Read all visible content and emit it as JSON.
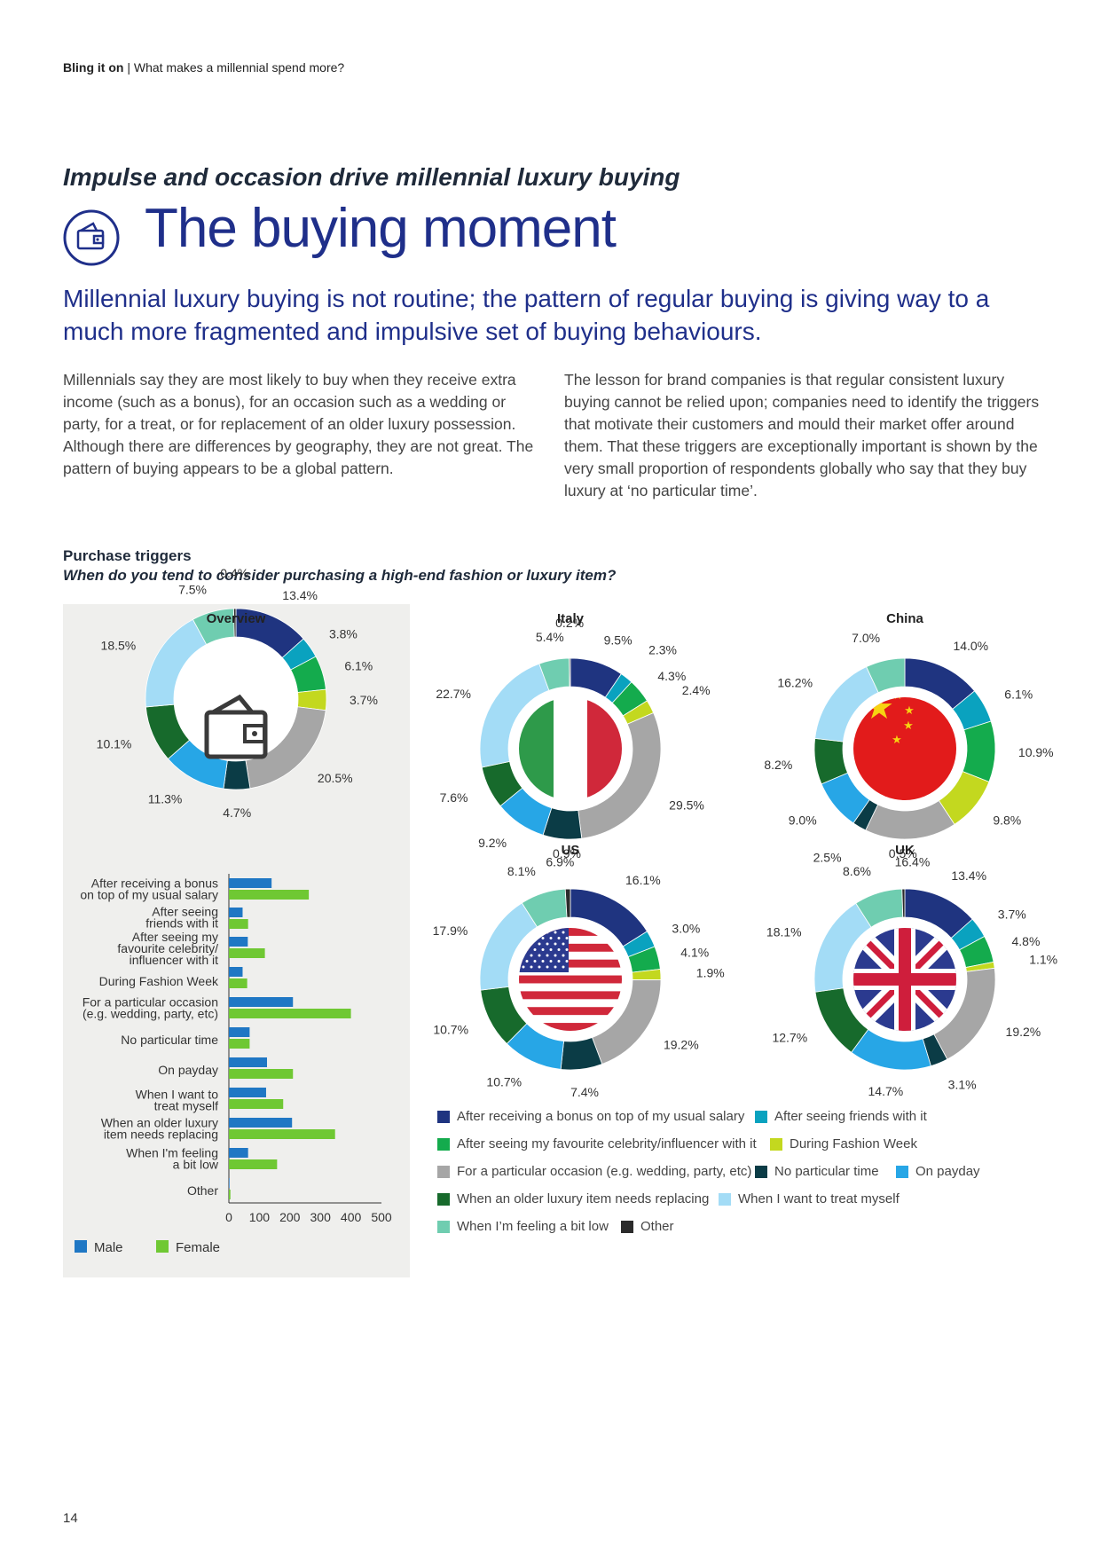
{
  "header": {
    "running_title": "Bling it on",
    "running_separator": "|",
    "running_subtitle": "What makes a millennial spend more?"
  },
  "kicker": "Impulse and occasion drive millennial luxury buying",
  "title": "The buying moment",
  "lead": "Millennial luxury buying is not routine; the pattern of regular buying is giving way to a much more fragmented and impulsive set of buying behaviours.",
  "body": {
    "left": "Millennials say they are most likely to buy when they receive extra income (such as a bonus), for an occasion such as a wedding or party, for a treat, or for replacement of an older luxury possession. Although there are differences by geography, they are not great. The pattern of buying appears to be a global pattern.",
    "right": "The lesson for brand companies is that regular consistent luxury buying cannot be relied upon; companies need to identify the triggers that motivate their customers and mould their market offer around them. That these triggers are exceptionally important is shown by the very small proportion of respondents globally who say that they buy luxury at ‘no particular time’."
  },
  "section": {
    "title": "Purchase triggers",
    "question": "When do you tend to consider purchasing a high-end fashion or luxury item?"
  },
  "page_number": "14",
  "colors": {
    "bonus": "#1f3480",
    "friends": "#0aa2bf",
    "celebrity": "#14ab4d",
    "fashion_week": "#c3d81f",
    "occasion": "#a6a6a6",
    "no_particular": "#0b3c46",
    "payday": "#27a6e6",
    "replacing": "#176a2c",
    "treat": "#a3dcf6",
    "low": "#6fcdb0",
    "other": "#2b2b2b",
    "male": "#1f77c4",
    "female": "#6fc833"
  },
  "chart_data": [
    {
      "type": "pie",
      "title": "Overview",
      "categories": [
        "After receiving a bonus on top of my usual salary",
        "After seeing friends with it",
        "After seeing my favourite celebrity/influencer with it",
        "During Fashion Week",
        "For a particular occasion (e.g. wedding, party, etc)",
        "No particular time",
        "On payday",
        "When an older luxury item needs replacing",
        "When I want to treat myself",
        "When I’m feeling a bit low",
        "Other"
      ],
      "values": [
        13.4,
        3.8,
        6.1,
        3.7,
        20.5,
        4.7,
        11.3,
        10.1,
        18.5,
        7.5,
        0.4
      ],
      "labels": [
        "13.4%",
        "3.8%",
        "6.1%",
        "3.7%",
        "20.5%",
        "4.7%",
        "11.3%",
        "10.1%",
        "18.5%",
        "7.5%",
        "0.4%"
      ]
    },
    {
      "type": "pie",
      "title": "Italy",
      "values": [
        9.5,
        2.3,
        4.3,
        2.4,
        29.5,
        6.9,
        9.2,
        7.6,
        22.7,
        5.4,
        0.2
      ],
      "labels": [
        "9.5%",
        "2.3%",
        "4.3%",
        "2.4%",
        "29.5%",
        "6.9%",
        "9.2%",
        "7.6%",
        "22.7%",
        "5.4%",
        "0.2%"
      ]
    },
    {
      "type": "pie",
      "title": "China",
      "values": [
        14.0,
        6.1,
        10.9,
        9.8,
        16.4,
        2.5,
        9.0,
        8.2,
        16.2,
        7.0
      ],
      "labels": [
        "14.0%",
        "6.1%",
        "10.9%",
        "9.8%",
        "16.4%",
        "2.5%",
        "9.0%",
        "8.2%",
        "16.2%",
        "7.0%"
      ]
    },
    {
      "type": "pie",
      "title": "US",
      "values": [
        16.1,
        3.0,
        4.1,
        1.9,
        19.2,
        7.4,
        10.7,
        10.7,
        17.9,
        8.1,
        0.9
      ],
      "labels": [
        "16.1%",
        "3.0%",
        "4.1%",
        "1.9%",
        "19.2%",
        "7.4%",
        "10.7%",
        "10.7%",
        "17.9%",
        "8.1%",
        "0.9%"
      ]
    },
    {
      "type": "pie",
      "title": "UK",
      "values": [
        13.4,
        3.7,
        4.8,
        1.1,
        19.2,
        3.1,
        14.7,
        12.7,
        18.1,
        8.6,
        0.5
      ],
      "labels": [
        "13.4%",
        "3.7%",
        "4.8%",
        "1.1%",
        "19.2%",
        "3.1%",
        "14.7%",
        "12.7%",
        "18.1%",
        "8.6%",
        "0.5%"
      ]
    },
    {
      "type": "bar",
      "orientation": "horizontal",
      "categories": [
        [
          "After receiving a bonus",
          "on top of my usual salary"
        ],
        [
          "After seeing",
          "friends with it"
        ],
        [
          "After seeing my",
          "favourite celebrity/",
          "influencer with it"
        ],
        [
          "During Fashion Week"
        ],
        [
          "For a particular occasion",
          "(e.g. wedding, party, etc)"
        ],
        [
          "No particular time"
        ],
        [
          "On payday"
        ],
        [
          "When I want to",
          "treat myself"
        ],
        [
          "When an older luxury",
          "item needs replacing"
        ],
        [
          "When I'm feeling",
          "a bit low"
        ],
        [
          "Other"
        ]
      ],
      "series": [
        {
          "name": "Male",
          "values": [
            140,
            45,
            62,
            45,
            210,
            68,
            125,
            122,
            207,
            63,
            2
          ]
        },
        {
          "name": "Female",
          "values": [
            262,
            63,
            118,
            60,
            400,
            68,
            210,
            178,
            348,
            158,
            5
          ]
        }
      ],
      "xlim": [
        0,
        500
      ],
      "xticks": [
        "0",
        "100",
        "200",
        "300",
        "400",
        "500"
      ]
    }
  ],
  "legend": {
    "items": [
      {
        "label": "After receiving a bonus on top of my usual salary",
        "color": "#1f3480"
      },
      {
        "label": "After seeing friends with it",
        "color": "#0aa2bf"
      },
      {
        "label": "After seeing my favourite celebrity/influencer with it",
        "color": "#14ab4d"
      },
      {
        "label": "During Fashion Week",
        "color": "#c3d81f"
      },
      {
        "label": "For a particular occasion (e.g. wedding, party, etc)",
        "color": "#a6a6a6"
      },
      {
        "label": "No particular time",
        "color": "#0b3c46"
      },
      {
        "label": "On payday",
        "color": "#27a6e6"
      },
      {
        "label": "When an older luxury item needs replacing",
        "color": "#176a2c"
      },
      {
        "label": "When I want to treat myself",
        "color": "#a3dcf6"
      },
      {
        "label": "When I’m feeling a bit low",
        "color": "#6fcdb0"
      },
      {
        "label": "Other",
        "color": "#2b2b2b"
      }
    ],
    "bar_legend": [
      {
        "label": "Male",
        "color": "#1f77c4"
      },
      {
        "label": "Female",
        "color": "#6fc833"
      }
    ]
  }
}
